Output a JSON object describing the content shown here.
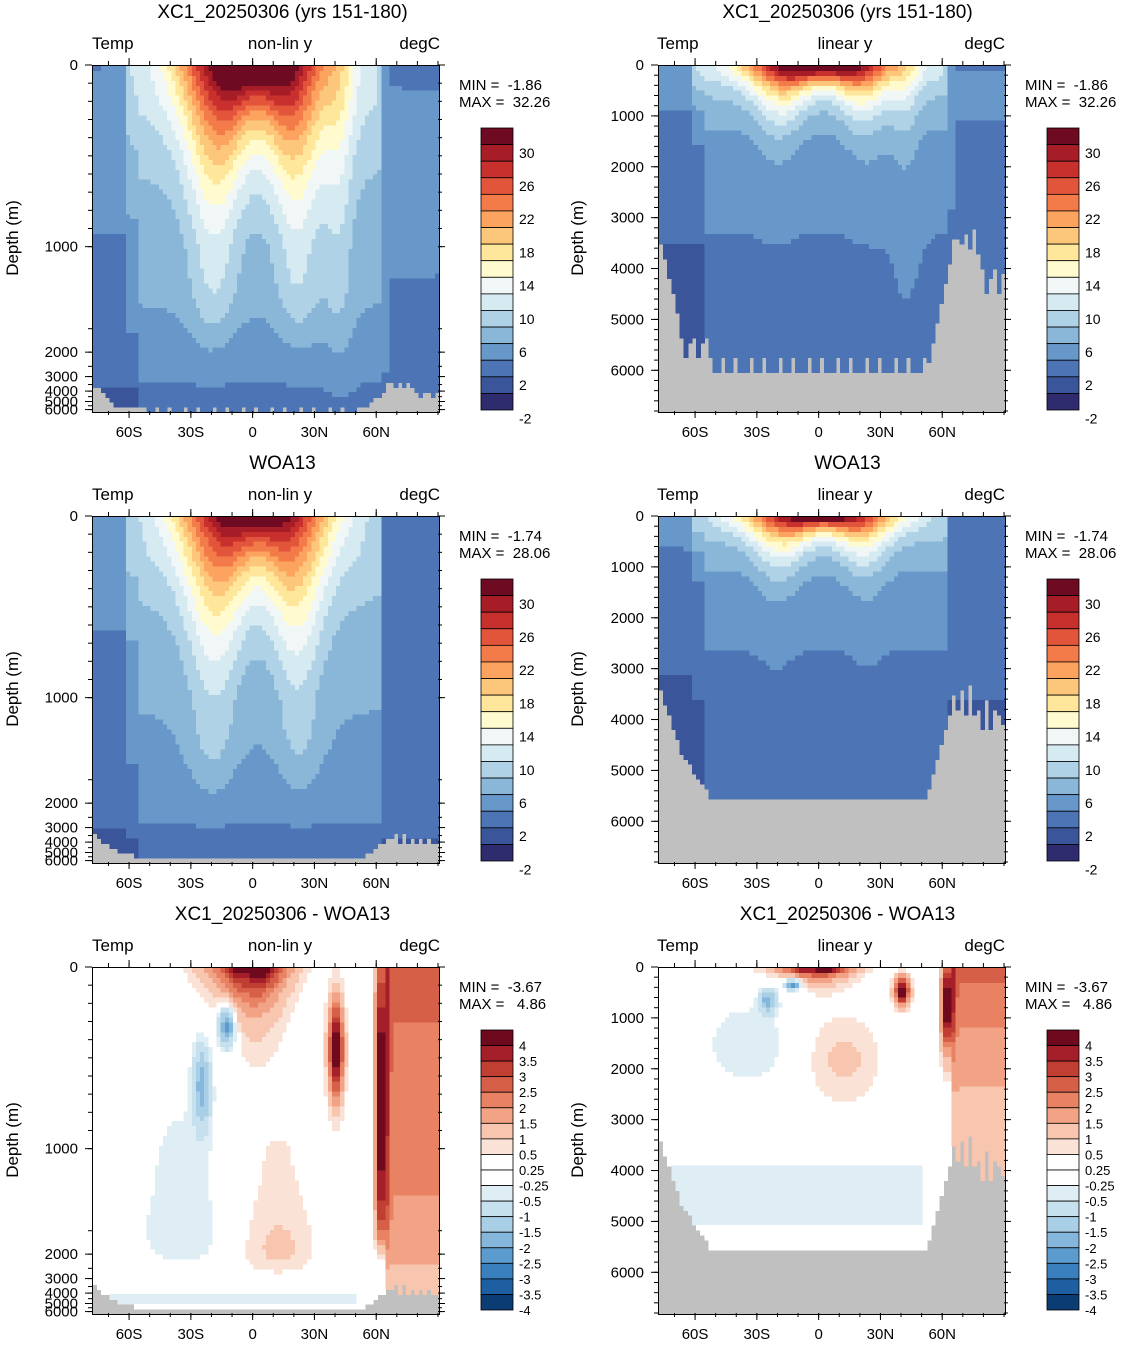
{
  "chart_data": [
    {
      "type": "heatmap",
      "title": "XC1_20250306 (yrs 151-180)",
      "left_label": "Temp",
      "center_label": "non-lin y",
      "right_label": "degC",
      "ylabel": "Depth (m)",
      "xticks": [
        "60S",
        "30S",
        "0",
        "30N",
        "60N"
      ],
      "yticks": [
        "0",
        "1000",
        "2000",
        "3000",
        "4000",
        "5000",
        "6000"
      ],
      "y_scale": "non-linear",
      "x_range": [
        -78,
        90
      ],
      "y_range": [
        0,
        6000
      ],
      "min_label": "MIN =  -1.86",
      "max_label": "MAX =  32.26",
      "colorbar_levels": [
        "30",
        "26",
        "22",
        "18",
        "14",
        "10",
        "6",
        "2",
        "-2"
      ],
      "field": "model"
    },
    {
      "type": "heatmap",
      "title": "XC1_20250306 (yrs 151-180)",
      "left_label": "Temp",
      "center_label": "linear y",
      "right_label": "degC",
      "ylabel": "Depth (m)",
      "xticks": [
        "60S",
        "30S",
        "0",
        "30N",
        "60N"
      ],
      "yticks": [
        "0",
        "1000",
        "2000",
        "3000",
        "4000",
        "5000",
        "6000"
      ],
      "y_scale": "linear",
      "x_range": [
        -78,
        90
      ],
      "y_range": [
        0,
        6800
      ],
      "min_label": "MIN =  -1.86",
      "max_label": "MAX =  32.26",
      "colorbar_levels": [
        "30",
        "26",
        "22",
        "18",
        "14",
        "10",
        "6",
        "2",
        "-2"
      ],
      "field": "model"
    },
    {
      "type": "heatmap",
      "title": "WOA13",
      "left_label": "Temp",
      "center_label": "non-lin y",
      "right_label": "degC",
      "ylabel": "Depth (m)",
      "xticks": [
        "60S",
        "30S",
        "0",
        "30N",
        "60N"
      ],
      "yticks": [
        "0",
        "1000",
        "2000",
        "3000",
        "4000",
        "5000",
        "6000"
      ],
      "y_scale": "non-linear",
      "x_range": [
        -78,
        90
      ],
      "y_range": [
        0,
        6000
      ],
      "min_label": "MIN =  -1.74",
      "max_label": "MAX =  28.06",
      "colorbar_levels": [
        "30",
        "26",
        "22",
        "18",
        "14",
        "10",
        "6",
        "2",
        "-2"
      ],
      "field": "obs"
    },
    {
      "type": "heatmap",
      "title": "WOA13",
      "left_label": "Temp",
      "center_label": "linear y",
      "right_label": "degC",
      "ylabel": "Depth (m)",
      "xticks": [
        "60S",
        "30S",
        "0",
        "30N",
        "60N"
      ],
      "yticks": [
        "0",
        "1000",
        "2000",
        "3000",
        "4000",
        "5000",
        "6000"
      ],
      "y_scale": "linear",
      "x_range": [
        -78,
        90
      ],
      "y_range": [
        0,
        6800
      ],
      "min_label": "MIN =  -1.74",
      "max_label": "MAX =  28.06",
      "colorbar_levels": [
        "30",
        "26",
        "22",
        "18",
        "14",
        "10",
        "6",
        "2",
        "-2"
      ],
      "field": "obs"
    },
    {
      "type": "heatmap",
      "title": "XC1_20250306 - WOA13",
      "left_label": "Temp",
      "center_label": "non-lin y",
      "right_label": "degC",
      "ylabel": "Depth (m)",
      "xticks": [
        "60S",
        "30S",
        "0",
        "30N",
        "60N"
      ],
      "yticks": [
        "0",
        "1000",
        "2000",
        "3000",
        "4000",
        "5000",
        "6000"
      ],
      "y_scale": "non-linear",
      "x_range": [
        -78,
        90
      ],
      "y_range": [
        0,
        6000
      ],
      "min_label": "MIN =  -3.67",
      "max_label": "MAX =   4.86",
      "colorbar_levels": [
        "4",
        "3.5",
        "3",
        "2.5",
        "2",
        "1.5",
        "1",
        "0.5",
        "0.25",
        "-0.25",
        "-0.5",
        "-1",
        "-1.5",
        "-2",
        "-2.5",
        "-3",
        "-3.5",
        "-4"
      ],
      "field": "diff"
    },
    {
      "type": "heatmap",
      "title": "XC1_20250306 - WOA13",
      "left_label": "Temp",
      "center_label": "linear y",
      "right_label": "degC",
      "ylabel": "Depth (m)",
      "xticks": [
        "60S",
        "30S",
        "0",
        "30N",
        "60N"
      ],
      "yticks": [
        "0",
        "1000",
        "2000",
        "3000",
        "4000",
        "5000",
        "6000"
      ],
      "y_scale": "linear",
      "x_range": [
        -78,
        90
      ],
      "y_range": [
        0,
        6800
      ],
      "min_label": "MIN =  -3.67",
      "max_label": "MAX =   4.86",
      "colorbar_levels": [
        "4",
        "3.5",
        "3",
        "2.5",
        "2",
        "1.5",
        "1",
        "0.5",
        "0.25",
        "-0.25",
        "-0.5",
        "-1",
        "-1.5",
        "-2",
        "-2.5",
        "-3",
        "-3.5",
        "-4"
      ],
      "field": "diff"
    }
  ],
  "colors": {
    "land": "#c0c0c0",
    "temp_palette": [
      "#2e2c6e",
      "#3a559a",
      "#4d75b5",
      "#6798c9",
      "#8ab6d8",
      "#b0d2e6",
      "#d6eaf1",
      "#f1f7f6",
      "#fffbcf",
      "#fee79a",
      "#fdc77b",
      "#fba35f",
      "#f37b4a",
      "#e2553b",
      "#c7302d",
      "#a61c27",
      "#6e0a22"
    ],
    "diff_palette": [
      "#0b3c74",
      "#1d5fa0",
      "#3a7fbe",
      "#5b9bcd",
      "#84b7db",
      "#a9cfe6",
      "#c7e0ee",
      "#dfedf5",
      "#ffffff",
      "#ffffff",
      "#fbe2d6",
      "#f8c5ae",
      "#f2a386",
      "#e88263",
      "#d65f47",
      "#c13e33",
      "#a41f29",
      "#6f0a1e"
    ]
  }
}
